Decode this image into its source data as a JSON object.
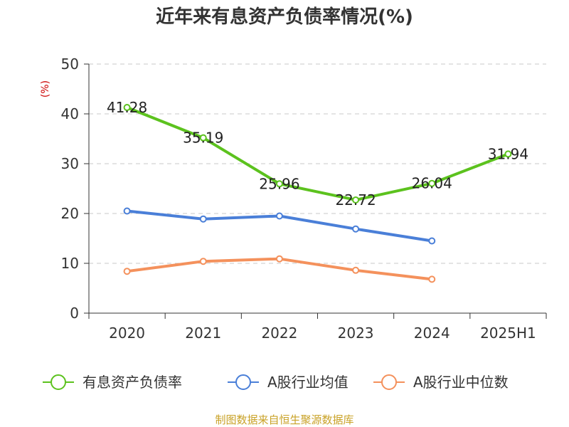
{
  "chart_data": {
    "type": "line",
    "title": "近年来有息资产负债率情况(%)",
    "ylabel": "(%)",
    "xlabel": "",
    "categories": [
      "2020",
      "2021",
      "2022",
      "2023",
      "2024",
      "2025H1"
    ],
    "ylim": [
      0,
      50
    ],
    "yticks": [
      0,
      10,
      20,
      30,
      40,
      50
    ],
    "grid": true,
    "legend_position": "bottom",
    "series": [
      {
        "name": "有息资产负债率",
        "color": "#5cc21e",
        "values": [
          41.28,
          35.19,
          25.96,
          22.72,
          26.04,
          31.94
        ],
        "labels": [
          "41.28",
          "35.19",
          "25.96",
          "22.72",
          "26.04",
          "31.94"
        ]
      },
      {
        "name": "A股行业均值",
        "color": "#4a7fd8",
        "values": [
          20.5,
          18.9,
          19.5,
          16.9,
          14.5,
          null
        ]
      },
      {
        "name": "A股行业中位数",
        "color": "#f4915c",
        "values": [
          8.4,
          10.4,
          10.9,
          8.6,
          6.8,
          null
        ]
      }
    ],
    "source": "制图数据来自恒生聚源数据库"
  }
}
